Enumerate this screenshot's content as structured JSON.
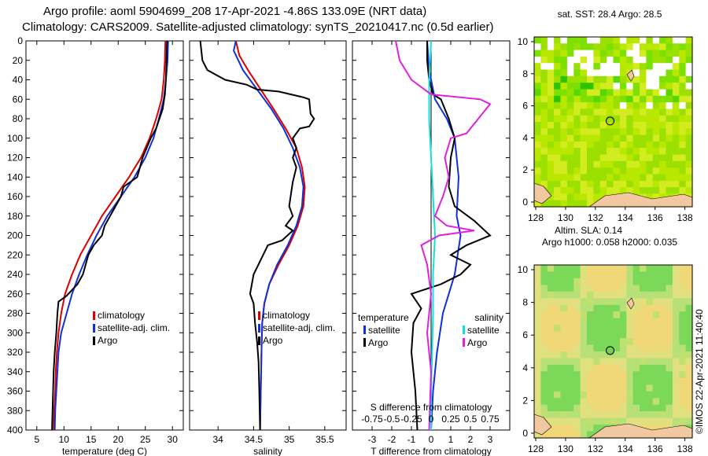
{
  "title_line1": "Argo profile: aoml 5904699_208 17-Apr-2021 -4.86S 133.09E (NRT data)",
  "title_line2": "Climatology: CARS2009. Satellite-adjusted climatology: synTS_20210417.nc (0.5d earlier)",
  "colors": {
    "red": "#dd0000",
    "blue": "#1030d8",
    "cyan": "#10e0e0",
    "magenta": "#e020e0",
    "black": "#000000"
  },
  "chart_data": [
    {
      "type": "line",
      "id": "temperature",
      "xlabel": "temperature (deg C)",
      "ylabel": "",
      "xlim": [
        3,
        32
      ],
      "ylim": [
        400,
        0
      ],
      "xticks": [
        5,
        10,
        15,
        20,
        25,
        30
      ],
      "yticks": [
        0,
        20,
        40,
        60,
        80,
        100,
        120,
        140,
        160,
        180,
        200,
        220,
        240,
        260,
        280,
        300,
        320,
        340,
        360,
        380,
        400
      ],
      "legend": [
        "climatology",
        "satellite-adj. clim.",
        "Argo"
      ],
      "series": [
        {
          "name": "climatology",
          "color": "red",
          "points": [
            [
              28.7,
              0
            ],
            [
              28.6,
              20
            ],
            [
              28.4,
              40
            ],
            [
              28,
              60
            ],
            [
              27,
              80
            ],
            [
              25.8,
              100
            ],
            [
              24.2,
              120
            ],
            [
              22,
              140
            ],
            [
              19.5,
              160
            ],
            [
              17,
              180
            ],
            [
              15,
              200
            ],
            [
              13,
              220
            ],
            [
              11.5,
              240
            ],
            [
              10.2,
              260
            ],
            [
              9.5,
              280
            ],
            [
              9,
              300
            ],
            [
              8.7,
              320
            ],
            [
              8.5,
              340
            ],
            [
              8.4,
              360
            ],
            [
              8.2,
              380
            ],
            [
              8.1,
              400
            ]
          ]
        },
        {
          "name": "satellite-adj. clim.",
          "color": "blue",
          "points": [
            [
              29.2,
              0
            ],
            [
              29.1,
              20
            ],
            [
              28.8,
              40
            ],
            [
              28.4,
              60
            ],
            [
              27.5,
              80
            ],
            [
              26.5,
              100
            ],
            [
              25,
              120
            ],
            [
              23,
              140
            ],
            [
              20.5,
              160
            ],
            [
              18,
              180
            ],
            [
              16,
              200
            ],
            [
              14.3,
              220
            ],
            [
              12.8,
              240
            ],
            [
              11.5,
              260
            ],
            [
              10.5,
              280
            ],
            [
              9.5,
              300
            ],
            [
              9,
              320
            ],
            [
              8.8,
              340
            ],
            [
              8.6,
              360
            ],
            [
              8.4,
              380
            ],
            [
              8.3,
              400
            ]
          ]
        },
        {
          "name": "Argo",
          "color": "black",
          "points": [
            [
              29,
              0
            ],
            [
              28.9,
              20
            ],
            [
              28.8,
              40
            ],
            [
              28.6,
              55
            ],
            [
              28.2,
              70
            ],
            [
              27,
              90
            ],
            [
              26,
              100
            ],
            [
              24.5,
              120
            ],
            [
              23.5,
              140
            ],
            [
              21,
              150
            ],
            [
              20.5,
              160
            ],
            [
              19.5,
              170
            ],
            [
              18.5,
              180
            ],
            [
              17.5,
              190
            ],
            [
              17,
              200
            ],
            [
              15.5,
              210
            ],
            [
              14.5,
              220
            ],
            [
              13.5,
              240
            ],
            [
              12.5,
              250
            ],
            [
              10.5,
              262
            ],
            [
              9,
              268
            ],
            [
              8.8,
              280
            ],
            [
              8.6,
              300
            ],
            [
              8.3,
              320
            ],
            [
              8.1,
              340
            ],
            [
              8,
              360
            ],
            [
              7.9,
              380
            ],
            [
              7.8,
              400
            ]
          ]
        }
      ]
    },
    {
      "type": "line",
      "id": "salinity",
      "xlabel": "salinity",
      "ylabel": "",
      "xlim": [
        33.6,
        35.8
      ],
      "ylim": [
        400,
        0
      ],
      "xticks": [
        34,
        34.5,
        35,
        35.5
      ],
      "legend": [
        "climatology",
        "satellite-adj. clim.",
        "Argo"
      ],
      "series": [
        {
          "name": "climatology",
          "color": "red",
          "points": [
            [
              34.25,
              0
            ],
            [
              34.3,
              15
            ],
            [
              34.42,
              30
            ],
            [
              34.6,
              50
            ],
            [
              34.78,
              70
            ],
            [
              34.95,
              90
            ],
            [
              35.1,
              110
            ],
            [
              35.18,
              130
            ],
            [
              35.22,
              150
            ],
            [
              35.2,
              170
            ],
            [
              35.12,
              190
            ],
            [
              35,
              210
            ],
            [
              34.85,
              230
            ],
            [
              34.72,
              250
            ],
            [
              34.65,
              270
            ],
            [
              34.62,
              290
            ],
            [
              34.61,
              320
            ],
            [
              34.6,
              360
            ],
            [
              34.59,
              400
            ]
          ]
        },
        {
          "name": "satellite-adj. clim.",
          "color": "blue",
          "points": [
            [
              34.25,
              0
            ],
            [
              34.22,
              10
            ],
            [
              34.35,
              30
            ],
            [
              34.55,
              50
            ],
            [
              34.75,
              70
            ],
            [
              34.92,
              90
            ],
            [
              35.05,
              110
            ],
            [
              35.15,
              130
            ],
            [
              35.2,
              150
            ],
            [
              35.18,
              170
            ],
            [
              35.1,
              190
            ],
            [
              34.98,
              210
            ],
            [
              34.83,
              230
            ],
            [
              34.72,
              250
            ],
            [
              34.65,
              270
            ],
            [
              34.62,
              290
            ],
            [
              34.61,
              320
            ],
            [
              34.6,
              360
            ],
            [
              34.59,
              400
            ]
          ]
        },
        {
          "name": "Argo",
          "color": "black",
          "points": [
            [
              33.75,
              0
            ],
            [
              33.78,
              20
            ],
            [
              33.85,
              30
            ],
            [
              34.1,
              40
            ],
            [
              34.4,
              45
            ],
            [
              34.55,
              50
            ],
            [
              34.85,
              52
            ],
            [
              35.2,
              58
            ],
            [
              35.28,
              60
            ],
            [
              35.3,
              75
            ],
            [
              35.35,
              80
            ],
            [
              35.28,
              88
            ],
            [
              35.15,
              90
            ],
            [
              35.05,
              100
            ],
            [
              35.1,
              110
            ],
            [
              35.05,
              120
            ],
            [
              35.1,
              130
            ],
            [
              35.05,
              145
            ],
            [
              35.02,
              160
            ],
            [
              35,
              170
            ],
            [
              35.05,
              180
            ],
            [
              34.95,
              190
            ],
            [
              35.05,
              195
            ],
            [
              34.9,
              205
            ],
            [
              34.7,
              210
            ],
            [
              34.6,
              225
            ],
            [
              34.5,
              240
            ],
            [
              34.45,
              260
            ],
            [
              34.5,
              270
            ],
            [
              34.52,
              290
            ],
            [
              34.55,
              310
            ],
            [
              34.57,
              330
            ],
            [
              34.58,
              360
            ],
            [
              34.59,
              400
            ]
          ]
        }
      ]
    },
    {
      "type": "line",
      "id": "difference",
      "xlabel": "T difference from climatology",
      "ylabel": "",
      "x2label": "S difference from climatology",
      "xlim": [
        -4,
        4
      ],
      "ylim": [
        400,
        0
      ],
      "xticks": [
        -3,
        -2,
        -1,
        0,
        1,
        2,
        3
      ],
      "x2ticks": [
        "-0.75",
        "-0.5",
        "-0.25",
        "0",
        "0.25",
        "0.5",
        "0.75"
      ],
      "legend_left_title": "temperature",
      "legend_right_title": "salinity",
      "legend_left": [
        "satellite",
        "Argo"
      ],
      "legend_right": [
        "satellite",
        "Argo"
      ],
      "series": [
        {
          "name": "T satellite",
          "color": "blue",
          "points": [
            [
              -0.2,
              0
            ],
            [
              -0.1,
              30
            ],
            [
              0.2,
              60
            ],
            [
              0.8,
              80
            ],
            [
              1.2,
              100
            ],
            [
              1.4,
              140
            ],
            [
              1.3,
              180
            ],
            [
              1.5,
              200
            ],
            [
              1.2,
              240
            ],
            [
              0.9,
              260
            ],
            [
              0.6,
              280
            ],
            [
              0.3,
              320
            ],
            [
              0.1,
              360
            ],
            [
              0,
              400
            ]
          ]
        },
        {
          "name": "T Argo",
          "color": "black",
          "points": [
            [
              -0.2,
              0
            ],
            [
              -0.2,
              20
            ],
            [
              -0.1,
              40
            ],
            [
              0.1,
              55
            ],
            [
              0.5,
              60
            ],
            [
              0.9,
              80
            ],
            [
              1.2,
              100
            ],
            [
              1,
              120
            ],
            [
              0.9,
              150
            ],
            [
              1.2,
              170
            ],
            [
              2.2,
              185
            ],
            [
              3,
              200
            ],
            [
              1.8,
              210
            ],
            [
              1,
              220
            ],
            [
              2,
              230
            ],
            [
              1.5,
              240
            ],
            [
              0.5,
              250
            ],
            [
              -1,
              260
            ],
            [
              -0.5,
              275
            ],
            [
              -0.9,
              290
            ],
            [
              -1,
              320
            ],
            [
              -0.8,
              360
            ],
            [
              -0.7,
              400
            ]
          ]
        },
        {
          "name": "S satellite",
          "color": "cyan",
          "points": [
            [
              0,
              0
            ],
            [
              -0.1,
              40
            ],
            [
              -0.1,
              80
            ],
            [
              0,
              120
            ],
            [
              0.1,
              160
            ],
            [
              0.2,
              200
            ],
            [
              0.1,
              240
            ],
            [
              0.1,
              280
            ],
            [
              0.05,
              320
            ],
            [
              0,
              360
            ],
            [
              0,
              400
            ]
          ]
        },
        {
          "name": "S Argo",
          "color": "magenta",
          "points": [
            [
              -1.8,
              0
            ],
            [
              -1.6,
              20
            ],
            [
              -1,
              40
            ],
            [
              0,
              55
            ],
            [
              2.5,
              60
            ],
            [
              3,
              65
            ],
            [
              2.4,
              80
            ],
            [
              1.8,
              95
            ],
            [
              1,
              100
            ],
            [
              0.7,
              120
            ],
            [
              0.9,
              140
            ],
            [
              0.6,
              160
            ],
            [
              0.2,
              180
            ],
            [
              0.8,
              190
            ],
            [
              2.2,
              195
            ],
            [
              0.4,
              200
            ],
            [
              -0.5,
              210
            ],
            [
              -0.2,
              230
            ],
            [
              0,
              260
            ],
            [
              -0.2,
              300
            ],
            [
              0,
              340
            ],
            [
              -0.1,
              400
            ]
          ]
        }
      ]
    }
  ],
  "map1": {
    "title": "sat. SST: 28.4 Argo: 28.5",
    "xticks": [
      "128",
      "130",
      "132",
      "134",
      "136",
      "138"
    ],
    "yticks": [
      "10",
      "8",
      "6",
      "4",
      "2",
      "0"
    ]
  },
  "map2": {
    "title1": "Altim. SLA: 0.14",
    "title2": "Argo h1000: 0.058 h2000: 0.035",
    "xticks": [
      "128",
      "130",
      "132",
      "134",
      "136",
      "138"
    ],
    "yticks": [
      "10",
      "8",
      "6",
      "4",
      "2",
      "0"
    ]
  },
  "credit": "©IMOS 22-Apr-2021 11:40:40"
}
